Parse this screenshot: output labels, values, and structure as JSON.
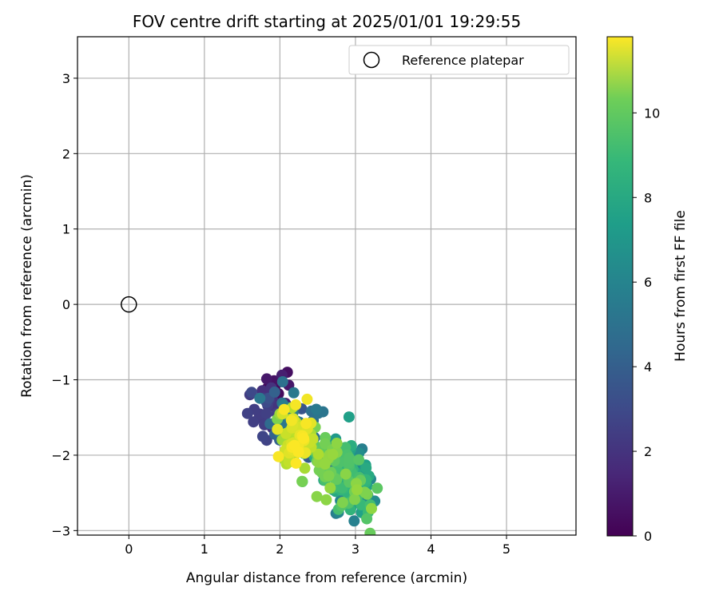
{
  "chart_data": {
    "type": "scatter",
    "title": "FOV centre drift starting at 2025/01/01 19:29:55",
    "xlabel": "Angular distance from reference (arcmin)",
    "ylabel": "Rotation from reference (arcmin)",
    "xlim": [
      -0.68,
      5.92
    ],
    "ylim": [
      -3.06,
      3.55
    ],
    "xticks": [
      0,
      1,
      2,
      3,
      4,
      5
    ],
    "yticks": [
      3,
      2,
      1,
      0,
      -1,
      -2,
      -3
    ],
    "grid": true,
    "legend": {
      "placement": "top-right",
      "entries": [
        "Reference platepar"
      ]
    },
    "reference_point": {
      "x": 0,
      "y": 0
    },
    "colorbar": {
      "label": "Hours from first FF file",
      "range": [
        0,
        11.8
      ],
      "ticks": [
        0,
        2,
        4,
        6,
        8,
        10
      ],
      "colormap": "viridis"
    },
    "clusters": [
      {
        "hours": [
          0,
          1.2
        ],
        "center": [
          1.95,
          -1.05
        ],
        "spread": [
          0.12,
          0.18
        ],
        "count": 14
      },
      {
        "hours": [
          1.2,
          3.0
        ],
        "center": [
          1.85,
          -1.45
        ],
        "spread": [
          0.15,
          0.2
        ],
        "count": 28
      },
      {
        "hours": [
          3.0,
          5.0
        ],
        "center": [
          2.2,
          -1.6
        ],
        "spread": [
          0.22,
          0.25
        ],
        "count": 45
      },
      {
        "hours": [
          5.0,
          8.5
        ],
        "center": [
          2.95,
          -2.35
        ],
        "spread": [
          0.17,
          0.22
        ],
        "count": 110
      },
      {
        "hours": [
          8.5,
          10.0
        ],
        "center": [
          2.7,
          -2.2
        ],
        "spread": [
          0.22,
          0.22
        ],
        "count": 55
      },
      {
        "hours": [
          10.0,
          11.8
        ],
        "center": [
          2.22,
          -1.78
        ],
        "spread": [
          0.12,
          0.2
        ],
        "count": 75
      }
    ]
  }
}
